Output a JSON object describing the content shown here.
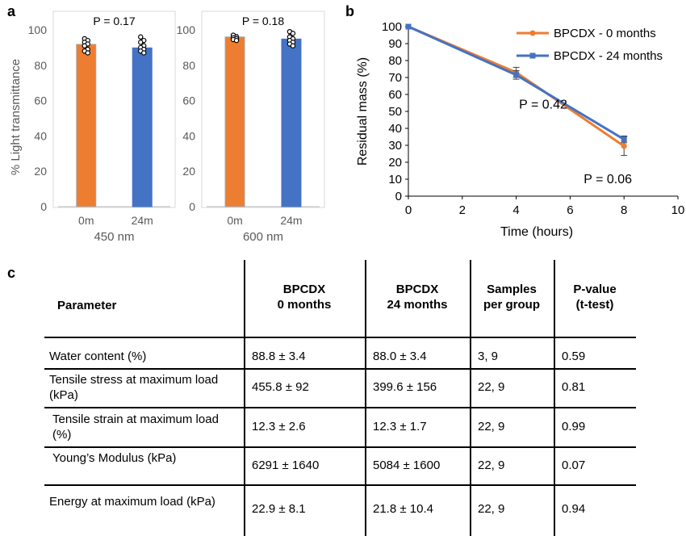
{
  "panels": {
    "a": "a",
    "b": "b",
    "c": "c"
  },
  "colors": {
    "orange": "#ED7D31",
    "blue": "#4472C4",
    "axis": "#595959",
    "bar_edge": "#a6a6a6"
  },
  "chart_data": [
    {
      "type": "bar",
      "id": "a-450",
      "categories": [
        "0m",
        "24m"
      ],
      "values": [
        91.8,
        89.8
      ],
      "errors": [
        2.2,
        3.4
      ],
      "points": [
        [
          95,
          94,
          93,
          92,
          91,
          89,
          88,
          87
        ],
        [
          96,
          94,
          93,
          91,
          90,
          89,
          88,
          87
        ]
      ],
      "xlabel": "450 nm",
      "ylabel": "% Light transmittance",
      "ylim": [
        0,
        100
      ],
      "yticks": [
        0,
        20,
        40,
        60,
        80,
        100
      ],
      "annotation": "P = 0.17",
      "grid": false
    },
    {
      "type": "bar",
      "id": "a-600",
      "categories": [
        "0m",
        "24m"
      ],
      "values": [
        96.0,
        94.8
      ],
      "errors": [
        1.3,
        3.0
      ],
      "points": [
        [
          97,
          96,
          95.5,
          95,
          94.5,
          94
        ],
        [
          99,
          98,
          96,
          95,
          94,
          93,
          92,
          91
        ]
      ],
      "xlabel": "600 nm",
      "ylabel": "",
      "ylim": [
        0,
        100
      ],
      "yticks": [
        0,
        20,
        40,
        60,
        80,
        100
      ],
      "annotation": "P = 0.18",
      "grid": false
    },
    {
      "type": "line",
      "id": "b",
      "x": [
        0,
        4,
        8
      ],
      "series": [
        {
          "name": "BPCDX - 0 months",
          "values": [
            100,
            73,
            29.5
          ],
          "errors": [
            0,
            3,
            5.5
          ],
          "color": "#ED7D31",
          "marker": "circle"
        },
        {
          "name": "BPCDX - 24 months",
          "values": [
            100,
            71.5,
            33.5
          ],
          "errors": [
            0,
            2.5,
            2
          ],
          "color": "#4472C4",
          "marker": "square"
        }
      ],
      "xlabel": "Time (hours)",
      "ylabel": "Residual mass (%)",
      "xlim": [
        0,
        10
      ],
      "ylim": [
        0,
        100
      ],
      "xticks": [
        0,
        2,
        4,
        6,
        8,
        10
      ],
      "yticks": [
        0,
        10,
        20,
        30,
        40,
        50,
        60,
        70,
        80,
        90,
        100
      ],
      "annotations": [
        {
          "text": "P = 0.42",
          "x": 5,
          "y": 54
        },
        {
          "text": "P = 0.06",
          "x": 7.4,
          "y": 10
        }
      ],
      "legend": "top-right",
      "grid": false
    },
    {
      "type": "table",
      "id": "c",
      "columns": [
        "Parameter",
        "BPCDX\n0 months",
        "BPCDX\n24 months",
        "Samples\nper group",
        "P-value\n(t-test)"
      ],
      "rows": [
        [
          "Water content (%)",
          "88.8 ± 3.4",
          "88.0 ± 3.4",
          "3, 9",
          "0.59"
        ],
        [
          "Tensile stress at maximum load (kPa)",
          "455.8 ± 92",
          "399.6 ± 156",
          "22, 9",
          "0.81"
        ],
        [
          "Tensile strain at maximum load (%)",
          "12.3 ± 2.6",
          "12.3 ± 1.7",
          "22, 9",
          "0.99"
        ],
        [
          "Young’s Modulus (kPa)",
          "6291 ± 1640",
          "5084 ± 1600",
          "22, 9",
          "0.07"
        ],
        [
          "Energy at maximum load (kPa)",
          "22.9 ± 8.1",
          "21.8 ± 10.4",
          "22, 9",
          "0.94"
        ]
      ]
    }
  ]
}
